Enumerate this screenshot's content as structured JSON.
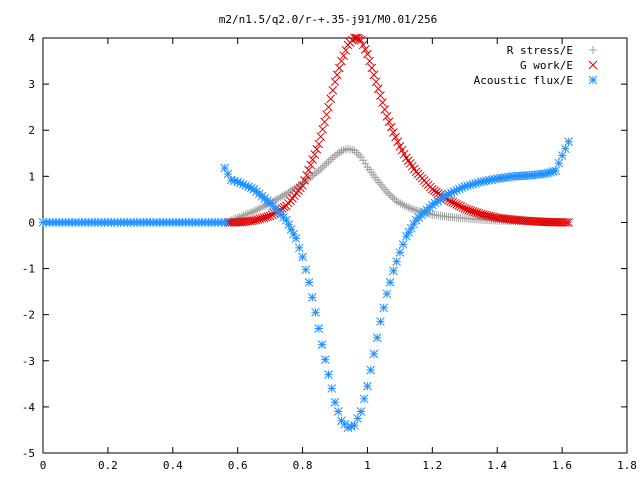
{
  "chart_data": {
    "type": "scatter",
    "title": "m2/n1.5/q2.0/r-+.35-j91/M0.01/256",
    "xlabel": "",
    "ylabel": "",
    "xlim": [
      0,
      1.8
    ],
    "ylim": [
      -5,
      4
    ],
    "xticks": [
      "0",
      "0.2",
      "0.4",
      "0.6",
      "0.8",
      "1",
      "1.2",
      "1.4",
      "1.6",
      "1.8"
    ],
    "yticks": [
      "-5",
      "-4",
      "-3",
      "-2",
      "-1",
      "0",
      "1",
      "2",
      "3",
      "4"
    ],
    "grid": false,
    "legend_position": "top-right",
    "series": [
      {
        "name": "R stress/E",
        "marker": "plus",
        "color": "#a0a0a0",
        "x": [
          0.57,
          0.6,
          0.65,
          0.7,
          0.75,
          0.8,
          0.85,
          0.88,
          0.9,
          0.92,
          0.94,
          0.96,
          0.98,
          1.0,
          1.03,
          1.06,
          1.09,
          1.12,
          1.15,
          1.2,
          1.25,
          1.3,
          1.35,
          1.4,
          1.45,
          1.5,
          1.55,
          1.6,
          1.62
        ],
        "y": [
          0.02,
          0.1,
          0.24,
          0.42,
          0.62,
          0.85,
          1.12,
          1.32,
          1.45,
          1.55,
          1.6,
          1.56,
          1.42,
          1.2,
          0.92,
          0.66,
          0.46,
          0.34,
          0.26,
          0.17,
          0.12,
          0.09,
          0.06,
          0.04,
          0.03,
          0.02,
          0.01,
          0.01,
          0.0
        ]
      },
      {
        "name": "G work/E",
        "marker": "cross",
        "color": "#e00000",
        "x": [
          0.57,
          0.6,
          0.65,
          0.7,
          0.75,
          0.8,
          0.85,
          0.88,
          0.9,
          0.92,
          0.94,
          0.96,
          0.97,
          0.98,
          1.0,
          1.02,
          1.04,
          1.06,
          1.08,
          1.1,
          1.12,
          1.15,
          1.2,
          1.25,
          1.3,
          1.35,
          1.4,
          1.45,
          1.5,
          1.55,
          1.6,
          1.62
        ],
        "y": [
          0.0,
          0.0,
          0.04,
          0.14,
          0.36,
          0.8,
          1.7,
          2.5,
          3.05,
          3.5,
          3.85,
          4.0,
          4.0,
          3.95,
          3.65,
          3.2,
          2.75,
          2.3,
          1.95,
          1.65,
          1.4,
          1.1,
          0.72,
          0.48,
          0.3,
          0.18,
          0.1,
          0.06,
          0.03,
          0.01,
          0.0,
          0.0
        ]
      },
      {
        "name": "Acoustic flux/E",
        "marker": "star",
        "color": "#1e90ff",
        "x": [
          0.56,
          0.58,
          0.6,
          0.65,
          0.7,
          0.75,
          0.78,
          0.8,
          0.82,
          0.84,
          0.86,
          0.88,
          0.9,
          0.92,
          0.94,
          0.96,
          0.98,
          1.0,
          1.02,
          1.04,
          1.06,
          1.08,
          1.1,
          1.12,
          1.15,
          1.2,
          1.25,
          1.3,
          1.35,
          1.4,
          1.45,
          1.5,
          1.55,
          1.58,
          1.6,
          1.62
        ],
        "y": [
          1.18,
          0.92,
          0.88,
          0.72,
          0.42,
          0.05,
          -0.35,
          -0.75,
          -1.3,
          -1.95,
          -2.65,
          -3.3,
          -3.9,
          -4.3,
          -4.45,
          -4.4,
          -4.1,
          -3.55,
          -2.85,
          -2.15,
          -1.55,
          -1.05,
          -0.65,
          -0.3,
          0.05,
          0.38,
          0.62,
          0.78,
          0.88,
          0.95,
          1.0,
          1.02,
          1.06,
          1.12,
          1.45,
          1.75
        ]
      },
      {
        "name": "",
        "marker": "star",
        "color": "#1e90ff",
        "x": [
          0.0,
          0.02,
          0.04,
          0.06,
          0.08,
          0.1,
          0.12,
          0.14,
          0.16,
          0.18,
          0.2,
          0.22,
          0.24,
          0.26,
          0.28,
          0.3,
          0.32,
          0.34,
          0.36,
          0.38,
          0.4,
          0.42,
          0.44,
          0.46,
          0.48,
          0.5,
          0.52,
          0.54,
          0.56
        ],
        "y": [
          0,
          0,
          0,
          0,
          0,
          0,
          0,
          0,
          0,
          0,
          0,
          0,
          0,
          0,
          0,
          0,
          0,
          0,
          0,
          0,
          0,
          0,
          0,
          0,
          0,
          0,
          0,
          0,
          0
        ]
      }
    ]
  }
}
